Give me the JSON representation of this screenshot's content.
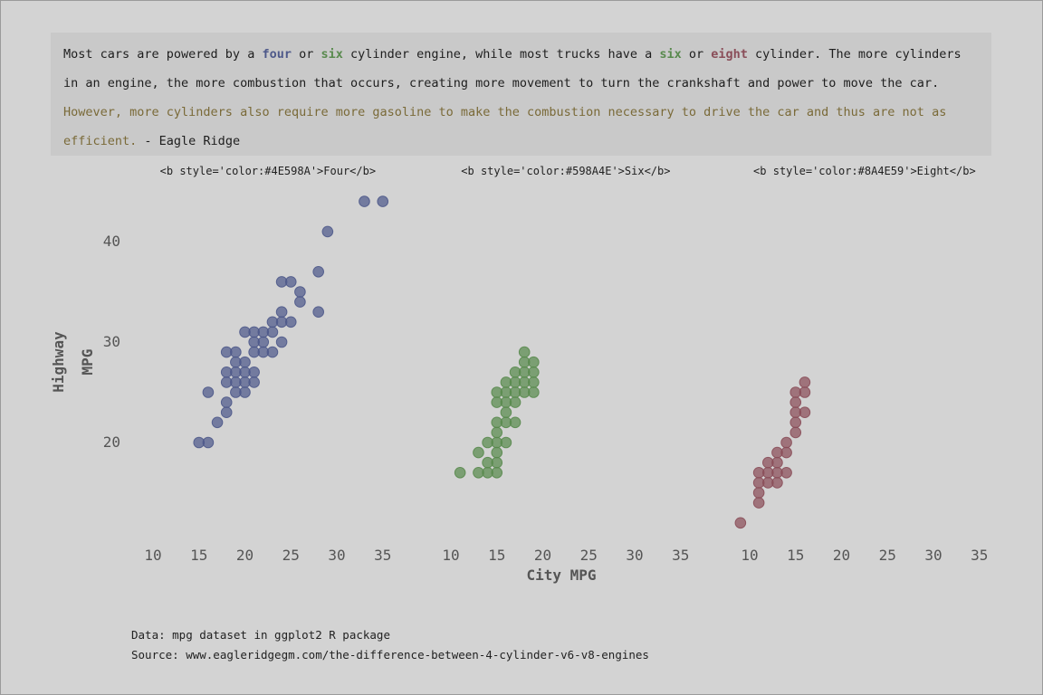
{
  "intro": {
    "t1": "Most cars are powered by a ",
    "four": "four",
    "t2": " or ",
    "six": "six",
    "t3": " cylinder engine, while most trucks have a ",
    "six2": "six",
    "t4": " or ",
    "eight": "eight",
    "t5": " cylinder. The more cylinders in an engine, the more combustion that occurs, creating more movement to turn the crankshaft and power to move the car. ",
    "highlight": "However, more cylinders also require more gasoline to make the combustion necessary to drive the car and thus are not as efficient.",
    "t6": " - Eagle Ridge"
  },
  "caption": {
    "data_line": "Data: mpg dataset in ggplot2 R package",
    "source_line": "Source: www.eagleridgegm.com/the-difference-between-4-cylinder-v6-v8-engines"
  },
  "colors": {
    "background": "#d3d3d3",
    "panel_text_bg": "#c9c9c9",
    "four": "#4E598A",
    "six": "#598A4E",
    "eight": "#8A4E59",
    "highlight_text": "#7a6a38"
  },
  "chart_data": {
    "type": "scatter",
    "xlabel": "City MPG",
    "ylabel": "Highway MPG",
    "ylabel_lines": [
      "Highway",
      "MPG"
    ],
    "xlim": [
      9,
      36
    ],
    "ylim": [
      11,
      45
    ],
    "xticks": [
      10,
      15,
      20,
      25,
      30,
      35
    ],
    "yticks": [
      20,
      30,
      40
    ],
    "grid": false,
    "panels": [
      {
        "label": "<b style='color:#4E598A'>Four</b>",
        "color": "#4E598A",
        "points": [
          [
            15,
            20
          ],
          [
            16,
            20
          ],
          [
            16,
            25
          ],
          [
            17,
            22
          ],
          [
            18,
            23
          ],
          [
            18,
            24
          ],
          [
            18,
            26
          ],
          [
            18,
            27
          ],
          [
            18,
            29
          ],
          [
            19,
            25
          ],
          [
            19,
            26
          ],
          [
            19,
            27
          ],
          [
            19,
            28
          ],
          [
            19,
            29
          ],
          [
            20,
            25
          ],
          [
            20,
            26
          ],
          [
            20,
            27
          ],
          [
            20,
            28
          ],
          [
            20,
            31
          ],
          [
            21,
            26
          ],
          [
            21,
            27
          ],
          [
            21,
            29
          ],
          [
            21,
            30
          ],
          [
            21,
            31
          ],
          [
            22,
            29
          ],
          [
            22,
            30
          ],
          [
            22,
            31
          ],
          [
            23,
            29
          ],
          [
            23,
            31
          ],
          [
            23,
            32
          ],
          [
            24,
            30
          ],
          [
            24,
            32
          ],
          [
            24,
            33
          ],
          [
            24,
            36
          ],
          [
            25,
            32
          ],
          [
            25,
            36
          ],
          [
            26,
            34
          ],
          [
            26,
            35
          ],
          [
            28,
            33
          ],
          [
            28,
            37
          ],
          [
            29,
            41
          ],
          [
            33,
            44
          ],
          [
            35,
            44
          ]
        ]
      },
      {
        "label": "<b style='color:#598A4E'>Six</b>",
        "color": "#598A4E",
        "points": [
          [
            11,
            17
          ],
          [
            13,
            17
          ],
          [
            13,
            19
          ],
          [
            14,
            17
          ],
          [
            14,
            18
          ],
          [
            14,
            20
          ],
          [
            15,
            17
          ],
          [
            15,
            18
          ],
          [
            15,
            19
          ],
          [
            15,
            20
          ],
          [
            15,
            21
          ],
          [
            15,
            22
          ],
          [
            15,
            24
          ],
          [
            15,
            25
          ],
          [
            16,
            20
          ],
          [
            16,
            22
          ],
          [
            16,
            23
          ],
          [
            16,
            24
          ],
          [
            16,
            25
          ],
          [
            16,
            26
          ],
          [
            17,
            22
          ],
          [
            17,
            24
          ],
          [
            17,
            25
          ],
          [
            17,
            26
          ],
          [
            17,
            27
          ],
          [
            18,
            25
          ],
          [
            18,
            26
          ],
          [
            18,
            27
          ],
          [
            18,
            28
          ],
          [
            18,
            29
          ],
          [
            19,
            25
          ],
          [
            19,
            26
          ],
          [
            19,
            27
          ],
          [
            19,
            28
          ]
        ]
      },
      {
        "label": "<b style='color:#8A4E59'>Eight</b>",
        "color": "#8A4E59",
        "points": [
          [
            9,
            12
          ],
          [
            11,
            14
          ],
          [
            11,
            15
          ],
          [
            11,
            16
          ],
          [
            11,
            17
          ],
          [
            12,
            16
          ],
          [
            12,
            17
          ],
          [
            12,
            18
          ],
          [
            13,
            16
          ],
          [
            13,
            17
          ],
          [
            13,
            18
          ],
          [
            13,
            19
          ],
          [
            14,
            17
          ],
          [
            14,
            19
          ],
          [
            14,
            20
          ],
          [
            15,
            21
          ],
          [
            15,
            22
          ],
          [
            15,
            23
          ],
          [
            15,
            24
          ],
          [
            15,
            25
          ],
          [
            16,
            23
          ],
          [
            16,
            25
          ],
          [
            16,
            26
          ]
        ]
      }
    ]
  }
}
